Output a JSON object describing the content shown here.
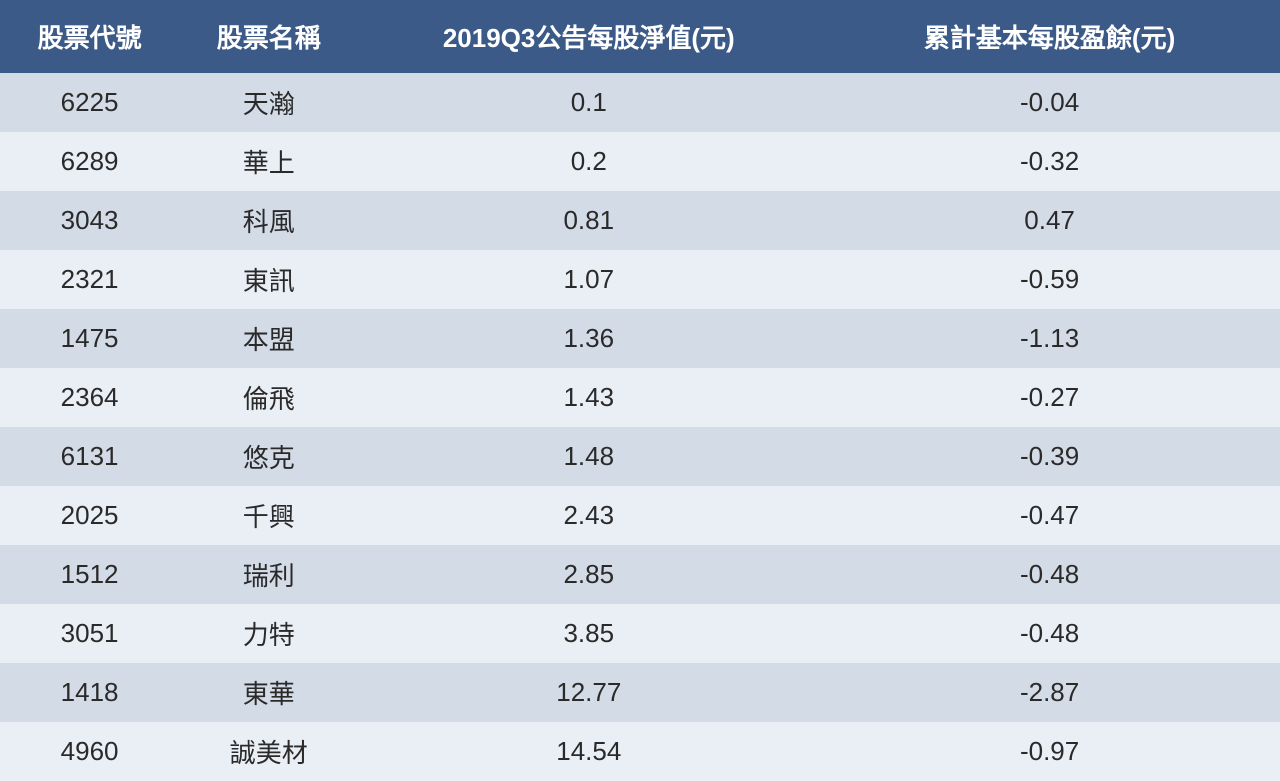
{
  "table": {
    "type": "table",
    "header_bg": "#3c5a88",
    "header_fg": "#ffffff",
    "row_odd_bg": "#d3dbe7",
    "row_even_bg": "#eaeef5",
    "text_color": "#2a2a2a",
    "header_fontsize": 26,
    "cell_fontsize": 26,
    "columns": [
      {
        "key": "code",
        "label": "股票代號",
        "width_pct": 14,
        "align": "center"
      },
      {
        "key": "name",
        "label": "股票名稱",
        "width_pct": 14,
        "align": "center"
      },
      {
        "key": "nav",
        "label": "2019Q3公告每股淨值(元)",
        "width_pct": 36,
        "align": "center"
      },
      {
        "key": "eps",
        "label": "累計基本每股盈餘(元)",
        "width_pct": 36,
        "align": "center"
      }
    ],
    "rows": [
      {
        "code": "6225",
        "name": "天瀚",
        "nav": "0.1",
        "eps": "-0.04"
      },
      {
        "code": "6289",
        "name": "華上",
        "nav": "0.2",
        "eps": "-0.32"
      },
      {
        "code": "3043",
        "name": "科風",
        "nav": "0.81",
        "eps": "0.47"
      },
      {
        "code": "2321",
        "name": "東訊",
        "nav": "1.07",
        "eps": "-0.59"
      },
      {
        "code": "1475",
        "name": "本盟",
        "nav": "1.36",
        "eps": "-1.13"
      },
      {
        "code": "2364",
        "name": "倫飛",
        "nav": "1.43",
        "eps": "-0.27"
      },
      {
        "code": "6131",
        "name": "悠克",
        "nav": "1.48",
        "eps": "-0.39"
      },
      {
        "code": "2025",
        "name": "千興",
        "nav": "2.43",
        "eps": "-0.47"
      },
      {
        "code": "1512",
        "name": "瑞利",
        "nav": "2.85",
        "eps": "-0.48"
      },
      {
        "code": "3051",
        "name": "力特",
        "nav": "3.85",
        "eps": "-0.48"
      },
      {
        "code": "1418",
        "name": "東華",
        "nav": "12.77",
        "eps": "-2.87"
      },
      {
        "code": "4960",
        "name": "誠美材",
        "nav": "14.54",
        "eps": "-0.97"
      }
    ]
  }
}
